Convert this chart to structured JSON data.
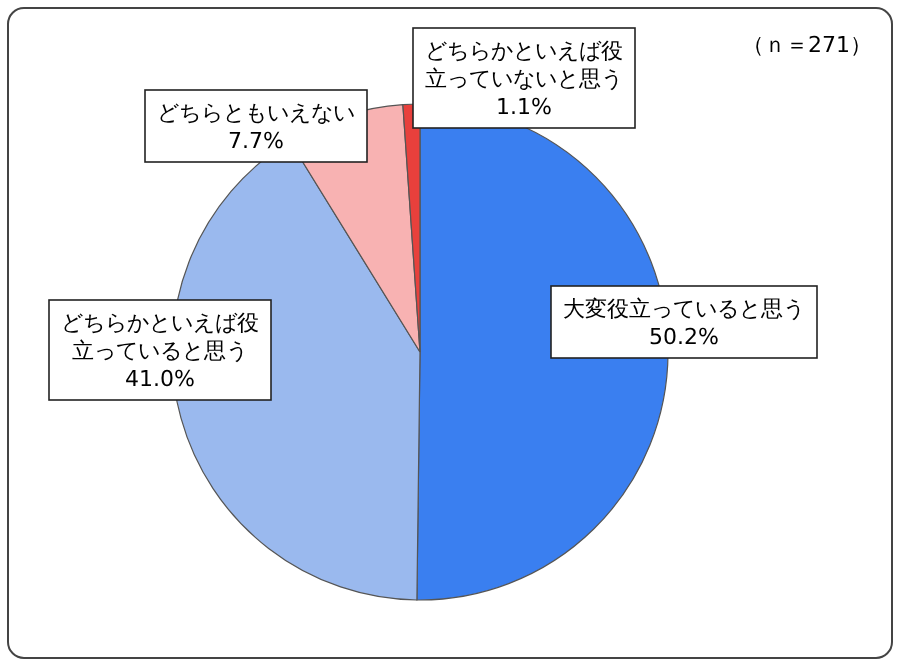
{
  "chart_data": {
    "type": "pie",
    "categories": [
      "大変役立っていると思う",
      "どちらかといえば役立っていると思う",
      "どちらともいえない",
      "どちらかといえば役立っていないと思う"
    ],
    "values": [
      50.2,
      41.0,
      7.7,
      1.1
    ],
    "value_labels": [
      "50.2%",
      "41.0%",
      "7.7%",
      "1.1%"
    ],
    "colors": [
      "#3a7ff0",
      "#9ab9ee",
      "#f8b2b2",
      "#e8403c"
    ],
    "annotations": [
      "（ｎ＝271）"
    ]
  }
}
